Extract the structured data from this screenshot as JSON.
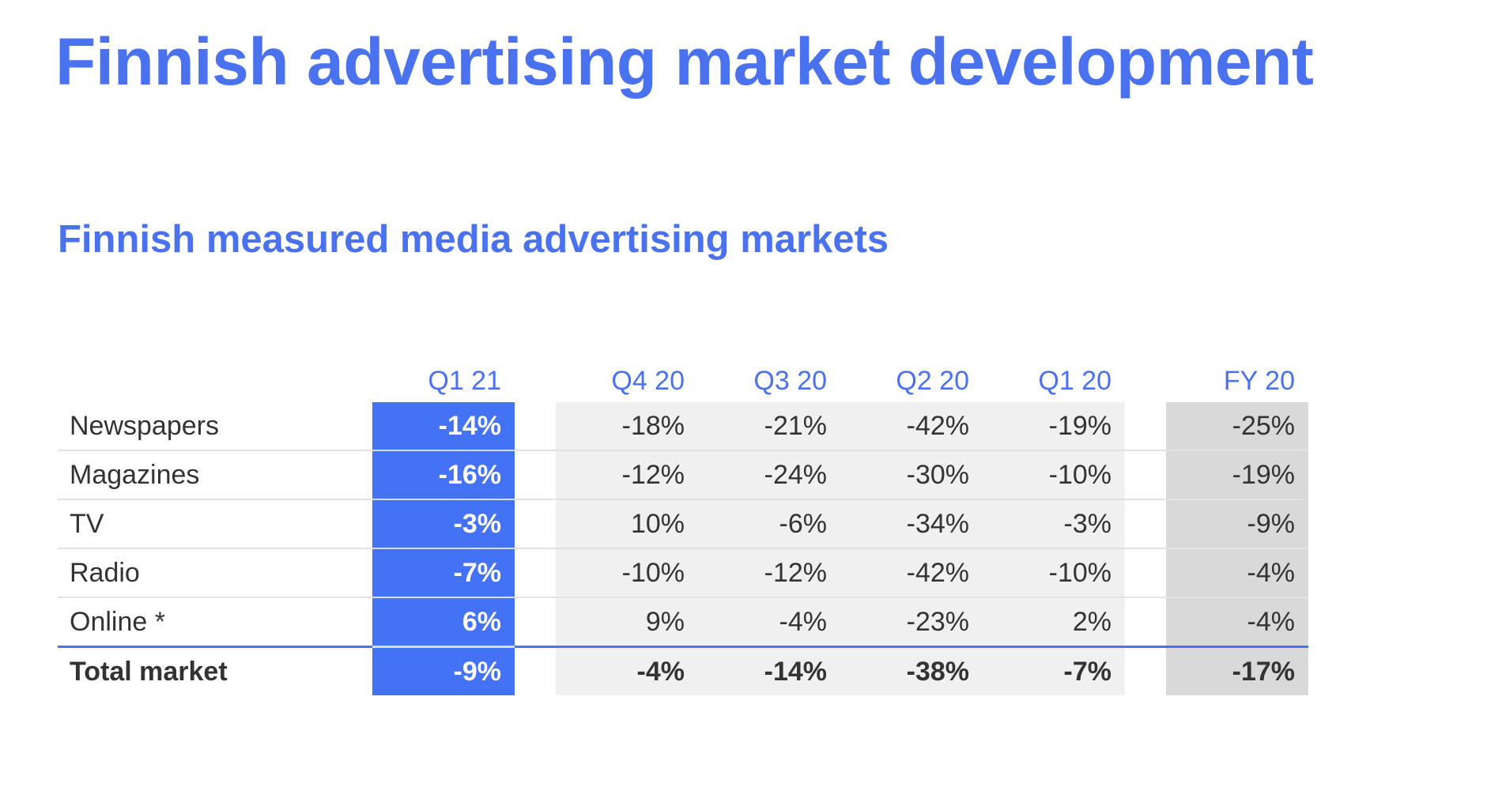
{
  "title": "Finnish advertising market development",
  "subtitle": "Finnish measured media advertising markets",
  "table": {
    "columns": [
      "Q1 21",
      "Q4 20",
      "Q3 20",
      "Q2 20",
      "Q1 20",
      "FY 20"
    ],
    "rows": [
      {
        "label": "Newspapers",
        "values": [
          "-14%",
          "-18%",
          "-21%",
          "-42%",
          "-19%",
          "-25%"
        ]
      },
      {
        "label": "Magazines",
        "values": [
          "-16%",
          "-12%",
          "-24%",
          "-30%",
          "-10%",
          "-19%"
        ]
      },
      {
        "label": "TV",
        "values": [
          "-3%",
          "10%",
          "-6%",
          "-34%",
          "-3%",
          "-9%"
        ]
      },
      {
        "label": "Radio",
        "values": [
          "-7%",
          "-10%",
          "-12%",
          "-42%",
          "-10%",
          "-4%"
        ]
      },
      {
        "label": "Online *",
        "values": [
          "6%",
          "9%",
          "-4%",
          "-23%",
          "2%",
          "-4%"
        ]
      },
      {
        "label": "Total market",
        "values": [
          "-9%",
          "-4%",
          "-14%",
          "-38%",
          "-7%",
          "-17%"
        ]
      }
    ]
  },
  "colors": {
    "accent": "#4472f4",
    "title": "#4a72ee",
    "grey_light": "#f0f0f0",
    "grey_dark": "#d9d9d9"
  }
}
